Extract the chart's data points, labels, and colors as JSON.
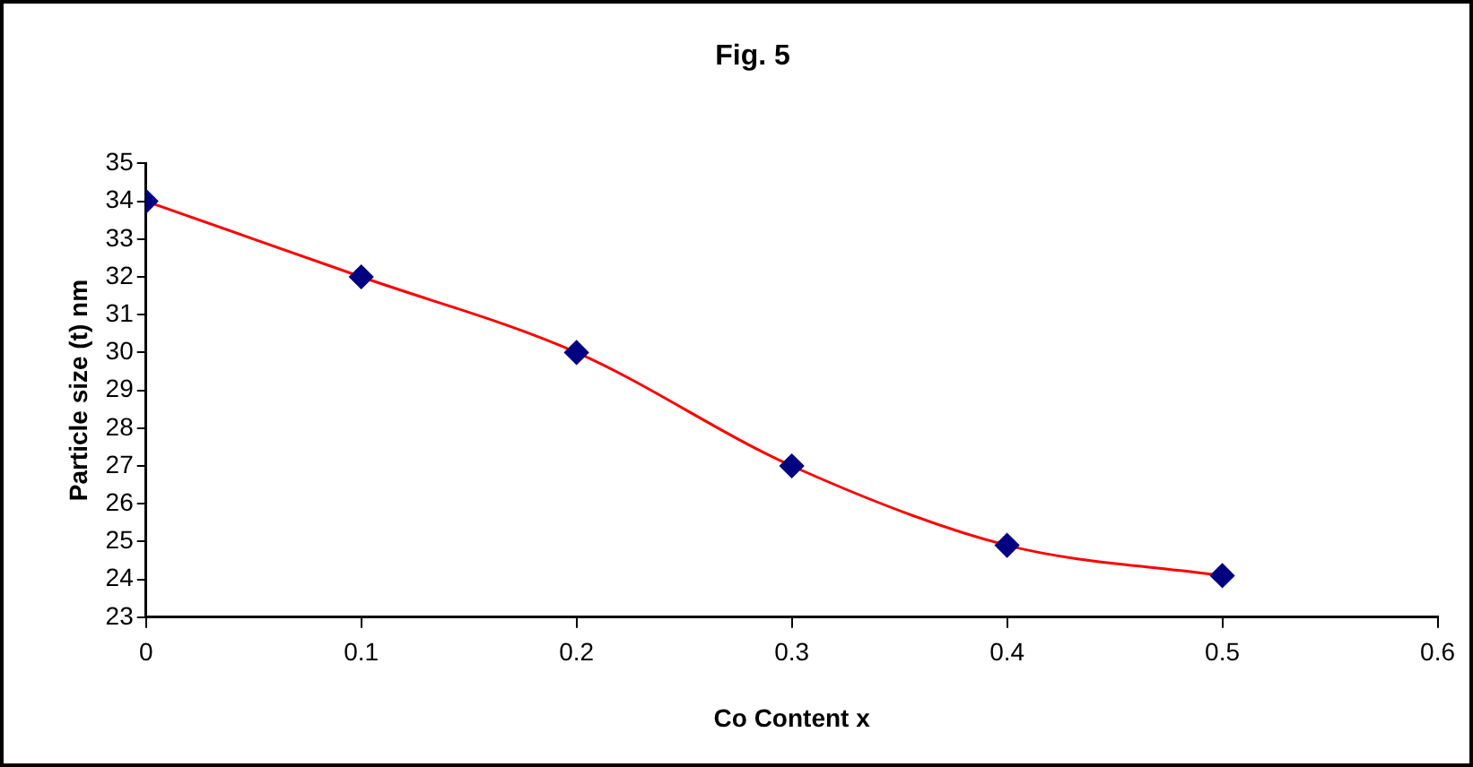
{
  "chart_data": {
    "type": "line",
    "title": "Fig. 5",
    "xlabel": "Co Content x",
    "ylabel": "Particle size (t) nm",
    "x": [
      0,
      0.1,
      0.2,
      0.3,
      0.4,
      0.5
    ],
    "series": [
      {
        "color": "#ff0000",
        "colors": [
          "#000080",
          "#000080",
          "#000080",
          "#000080",
          "#000080",
          "#000080"
        ],
        "values": [
          34,
          32,
          30,
          27,
          24.9,
          24.1
        ]
      }
    ],
    "xlim": [
      0,
      0.6
    ],
    "xticks": [
      0,
      0.1,
      0.2,
      0.3,
      0.4,
      0.5,
      0.6
    ],
    "ylim": [
      23,
      35
    ],
    "yticks": [
      23,
      24,
      25,
      26,
      27,
      28,
      29,
      30,
      31,
      32,
      33,
      34,
      35
    ],
    "grid": false,
    "legend": false,
    "marker": "diamond",
    "line_style": "solid"
  }
}
